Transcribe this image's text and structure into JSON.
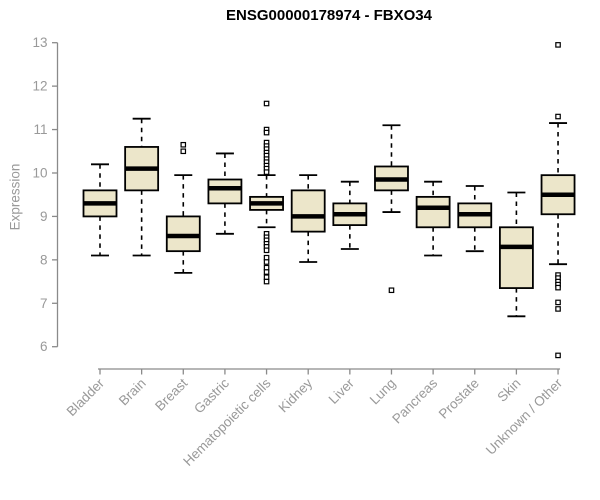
{
  "chart_data": {
    "type": "boxplot",
    "title": "ENSG00000178974 - FBXO34",
    "xlabel": "",
    "ylabel": "Expression",
    "ylim": [
      6,
      13
    ],
    "yticks": [
      6,
      7,
      8,
      9,
      10,
      11,
      12,
      13
    ],
    "grid": false,
    "legend": null,
    "categories": [
      "Bladder",
      "Brain",
      "Breast",
      "Gastric",
      "Hematopoietic cells",
      "Kidney",
      "Liver",
      "Lung",
      "Pancreas",
      "Prostate",
      "Skin",
      "Unknown / Other"
    ],
    "series": [
      {
        "name": "Bladder",
        "whisker_low": 8.1,
        "q1": 9.0,
        "median": 9.3,
        "q3": 9.6,
        "whisker_high": 10.2,
        "outliers": []
      },
      {
        "name": "Brain",
        "whisker_low": 8.1,
        "q1": 9.6,
        "median": 10.1,
        "q3": 10.6,
        "whisker_high": 11.25,
        "outliers": []
      },
      {
        "name": "Breast",
        "whisker_low": 7.7,
        "q1": 8.2,
        "median": 8.55,
        "q3": 9.0,
        "whisker_high": 9.95,
        "outliers": [
          10.65,
          10.5
        ]
      },
      {
        "name": "Gastric",
        "whisker_low": 8.6,
        "q1": 9.3,
        "median": 9.65,
        "q3": 9.85,
        "whisker_high": 10.45,
        "outliers": []
      },
      {
        "name": "Hematopoietic cells",
        "whisker_low": 8.75,
        "q1": 9.15,
        "median": 9.3,
        "q3": 9.45,
        "whisker_high": 9.95,
        "outliers": [
          11.6,
          11.0,
          10.93,
          10.7,
          10.62,
          10.55,
          10.47,
          10.4,
          10.32,
          10.25,
          10.17,
          10.1,
          10.02,
          8.6,
          8.52,
          8.45,
          8.37,
          8.3,
          8.22,
          8.05,
          7.95,
          7.82,
          7.72,
          7.6,
          7.5
        ]
      },
      {
        "name": "Kidney",
        "whisker_low": 7.95,
        "q1": 8.65,
        "median": 9.0,
        "q3": 9.6,
        "whisker_high": 9.95,
        "outliers": []
      },
      {
        "name": "Liver",
        "whisker_low": 8.25,
        "q1": 8.8,
        "median": 9.05,
        "q3": 9.3,
        "whisker_high": 9.8,
        "outliers": []
      },
      {
        "name": "Lung",
        "whisker_low": 9.1,
        "q1": 9.6,
        "median": 9.85,
        "q3": 10.15,
        "whisker_high": 11.1,
        "outliers": [
          7.3
        ]
      },
      {
        "name": "Pancreas",
        "whisker_low": 8.1,
        "q1": 8.75,
        "median": 9.2,
        "q3": 9.45,
        "whisker_high": 9.8,
        "outliers": []
      },
      {
        "name": "Prostate",
        "whisker_low": 8.2,
        "q1": 8.75,
        "median": 9.05,
        "q3": 9.3,
        "whisker_high": 9.7,
        "outliers": []
      },
      {
        "name": "Skin",
        "whisker_low": 6.7,
        "q1": 7.35,
        "median": 8.3,
        "q3": 8.75,
        "whisker_high": 9.55,
        "outliers": []
      },
      {
        "name": "Unknown / Other",
        "whisker_low": 7.9,
        "q1": 9.05,
        "median": 9.5,
        "q3": 9.95,
        "whisker_high": 11.15,
        "outliers": [
          12.95,
          11.3,
          7.65,
          7.58,
          7.5,
          7.43,
          7.36,
          7.02,
          6.87,
          5.8
        ]
      }
    ],
    "colors": {
      "box_fill": "#ece6ca",
      "box_stroke": "#000000",
      "median": "#000000",
      "whisker": "#000000",
      "outlier_stroke": "#000000",
      "axis_line": "#8a8a8a",
      "tick_label": "#999999",
      "title": "#000000",
      "background": "#ffffff"
    }
  }
}
